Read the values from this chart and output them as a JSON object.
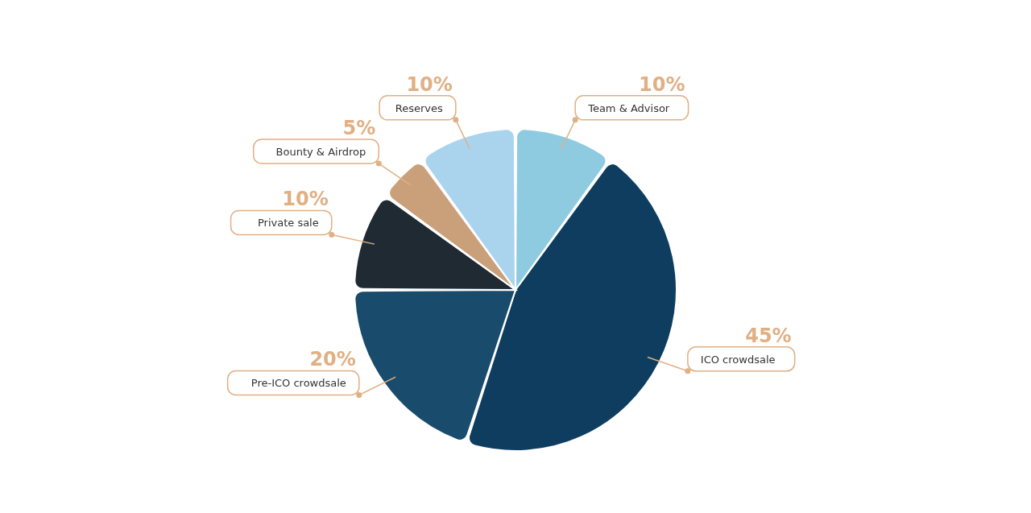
{
  "chart_data": {
    "type": "pie",
    "categories": [
      "Team & Advisor",
      "ICO crowdsale",
      "Pre-ICO crowdsale",
      "Private sale",
      "Bounty & Airdrop",
      "Reserves"
    ],
    "values": [
      10,
      45,
      20,
      10,
      5,
      10
    ],
    "value_labels": [
      "10%",
      "45%",
      "20%",
      "10%",
      "5%",
      "10%"
    ],
    "colors": [
      "#8fcbe0",
      "#0e3d5f",
      "#184b6c",
      "#1f2a33",
      "#c9a07a",
      "#aad4ee"
    ]
  }
}
